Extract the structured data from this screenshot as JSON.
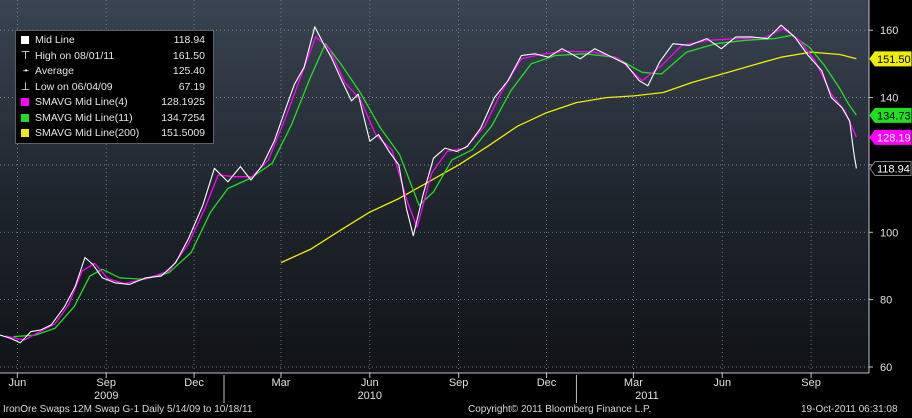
{
  "footer": {
    "left": "IronOre Swaps  12M Swap    G-1   Daily  5/14/09 to 10/18/11",
    "center": "Copyright© 2011 Bloomberg Finance L.P.",
    "right": "19-Oct-2011 06:31:08"
  },
  "legend": [
    {
      "marker": "square",
      "color": "#ffffff",
      "label": "Mid Line",
      "value": "118.94"
    },
    {
      "marker": "high-glyph",
      "color": "#ffffff",
      "label": "High on 08/01/11",
      "value": "161.50"
    },
    {
      "marker": "avg-glyph",
      "color": "#ffffff",
      "label": "Average",
      "value": "125.40"
    },
    {
      "marker": "low-glyph",
      "color": "#ffffff",
      "label": "Low on 06/04/09",
      "value": "67.19"
    },
    {
      "marker": "square",
      "color": "#ff00ff",
      "label": "SMAVG Mid Line(4)",
      "value": "128.1925"
    },
    {
      "marker": "square",
      "color": "#22dd22",
      "label": "SMAVG Mid Line(11)",
      "value": "134.7254"
    },
    {
      "marker": "square",
      "color": "#eeee00",
      "label": "SMAVG Mid Line(200)",
      "value": "151.5009"
    }
  ],
  "chart_data": {
    "type": "line",
    "y_ticks": [
      "60",
      "80",
      "100",
      "120",
      "140",
      "160"
    ],
    "ylim": [
      60,
      166
    ],
    "xlim": [
      "2009-05-14",
      "2011-10-31"
    ],
    "month_ticks": [
      {
        "date": "2009-06-01",
        "label": "Jun"
      },
      {
        "date": "2009-09-01",
        "label": "Sep"
      },
      {
        "date": "2009-12-01",
        "label": "Dec"
      },
      {
        "date": "2010-03-01",
        "label": "Mar"
      },
      {
        "date": "2010-06-01",
        "label": "Jun"
      },
      {
        "date": "2010-09-01",
        "label": "Sep"
      },
      {
        "date": "2010-12-01",
        "label": "Dec"
      },
      {
        "date": "2011-03-01",
        "label": "Mar"
      },
      {
        "date": "2011-06-01",
        "label": "Jun"
      },
      {
        "date": "2011-09-01",
        "label": "Sep"
      }
    ],
    "year_labels": [
      {
        "date": "2009-09-01",
        "label": "2009"
      },
      {
        "date": "2010-06-01",
        "label": "2010"
      },
      {
        "date": "2011-03-15",
        "label": "2011"
      }
    ],
    "year_dividers": [
      "2010-01-01",
      "2011-01-01"
    ],
    "series": [
      {
        "name": "Mid Line",
        "color": "#ffffff",
        "points": [
          [
            "2009-05-14",
            69.5
          ],
          [
            "2009-05-25",
            68.5
          ],
          [
            "2009-06-04",
            67.2
          ],
          [
            "2009-06-15",
            70.5
          ],
          [
            "2009-06-25",
            71.0
          ],
          [
            "2009-07-06",
            72.5
          ],
          [
            "2009-07-20",
            78.0
          ],
          [
            "2009-07-31",
            84.0
          ],
          [
            "2009-08-10",
            92.5
          ],
          [
            "2009-08-18",
            90.5
          ],
          [
            "2009-08-28",
            86.5
          ],
          [
            "2009-09-10",
            85.0
          ],
          [
            "2009-09-25",
            84.5
          ],
          [
            "2009-10-12",
            86.5
          ],
          [
            "2009-10-28",
            87.0
          ],
          [
            "2009-11-12",
            91.0
          ],
          [
            "2009-11-25",
            98.0
          ],
          [
            "2009-12-10",
            108.0
          ],
          [
            "2009-12-22",
            119.0
          ],
          [
            "2010-01-05",
            115.0
          ],
          [
            "2010-01-18",
            119.5
          ],
          [
            "2010-01-29",
            115.5
          ],
          [
            "2010-02-10",
            120.0
          ],
          [
            "2010-02-22",
            127.0
          ],
          [
            "2010-03-05",
            136.0
          ],
          [
            "2010-03-15",
            144.0
          ],
          [
            "2010-03-25",
            149.0
          ],
          [
            "2010-04-05",
            161.0
          ],
          [
            "2010-04-14",
            156.0
          ],
          [
            "2010-04-22",
            152.0
          ],
          [
            "2010-05-03",
            145.0
          ],
          [
            "2010-05-13",
            139.0
          ],
          [
            "2010-05-20",
            141.0
          ],
          [
            "2010-06-01",
            127.0
          ],
          [
            "2010-06-10",
            129.0
          ],
          [
            "2010-06-21",
            124.0
          ],
          [
            "2010-07-01",
            120.0
          ],
          [
            "2010-07-09",
            107.0
          ],
          [
            "2010-07-16",
            99.0
          ],
          [
            "2010-07-26",
            111.0
          ],
          [
            "2010-08-06",
            122.0
          ],
          [
            "2010-08-18",
            125.0
          ],
          [
            "2010-08-30",
            124.0
          ],
          [
            "2010-09-10",
            125.5
          ],
          [
            "2010-09-24",
            131.0
          ],
          [
            "2010-10-08",
            140.0
          ],
          [
            "2010-10-22",
            145.0
          ],
          [
            "2010-11-05",
            152.5
          ],
          [
            "2010-11-19",
            153.0
          ],
          [
            "2010-12-03",
            152.0
          ],
          [
            "2010-12-17",
            154.5
          ],
          [
            "2011-01-05",
            151.5
          ],
          [
            "2011-01-20",
            154.5
          ],
          [
            "2011-02-07",
            152.0
          ],
          [
            "2011-02-21",
            150.0
          ],
          [
            "2011-03-07",
            145.0
          ],
          [
            "2011-03-16",
            143.5
          ],
          [
            "2011-03-28",
            150.5
          ],
          [
            "2011-04-11",
            156.0
          ],
          [
            "2011-04-28",
            155.5
          ],
          [
            "2011-05-16",
            157.5
          ],
          [
            "2011-05-31",
            154.5
          ],
          [
            "2011-06-15",
            158.0
          ],
          [
            "2011-07-01",
            158.0
          ],
          [
            "2011-07-18",
            157.5
          ],
          [
            "2011-08-01",
            161.5
          ],
          [
            "2011-08-15",
            158.0
          ],
          [
            "2011-08-29",
            152.5
          ],
          [
            "2011-09-12",
            148.0
          ],
          [
            "2011-09-22",
            140.0
          ],
          [
            "2011-10-03",
            137.0
          ],
          [
            "2011-10-11",
            133.0
          ],
          [
            "2011-10-15",
            124.0
          ],
          [
            "2011-10-18",
            118.94
          ]
        ]
      },
      {
        "name": "SMAVG Mid Line(4)",
        "color": "#ff00ff",
        "points": [
          [
            "2009-05-20",
            69.2
          ],
          [
            "2009-06-08",
            68.0
          ],
          [
            "2009-06-25",
            70.6
          ],
          [
            "2009-07-10",
            72.8
          ],
          [
            "2009-07-24",
            78.5
          ],
          [
            "2009-08-07",
            88.5
          ],
          [
            "2009-08-20",
            90.8
          ],
          [
            "2009-09-03",
            86.2
          ],
          [
            "2009-09-20",
            84.8
          ],
          [
            "2009-10-12",
            86.2
          ],
          [
            "2009-11-05",
            88.5
          ],
          [
            "2009-11-25",
            96.5
          ],
          [
            "2009-12-12",
            107.0
          ],
          [
            "2009-12-26",
            117.0
          ],
          [
            "2010-01-12",
            116.5
          ],
          [
            "2010-01-30",
            116.5
          ],
          [
            "2010-02-16",
            121.5
          ],
          [
            "2010-03-05",
            133.5
          ],
          [
            "2010-03-20",
            145.0
          ],
          [
            "2010-04-06",
            158.0
          ],
          [
            "2010-04-20",
            154.5
          ],
          [
            "2010-05-06",
            144.5
          ],
          [
            "2010-05-22",
            139.5
          ],
          [
            "2010-06-07",
            129.0
          ],
          [
            "2010-06-24",
            124.5
          ],
          [
            "2010-07-10",
            109.0
          ],
          [
            "2010-07-20",
            101.5
          ],
          [
            "2010-08-04",
            117.5
          ],
          [
            "2010-08-20",
            124.0
          ],
          [
            "2010-09-08",
            125.0
          ],
          [
            "2010-09-28",
            131.5
          ],
          [
            "2010-10-15",
            141.5
          ],
          [
            "2010-11-05",
            151.5
          ],
          [
            "2010-11-25",
            152.8
          ],
          [
            "2010-12-20",
            153.8
          ],
          [
            "2011-01-20",
            153.5
          ],
          [
            "2011-02-14",
            151.5
          ],
          [
            "2011-03-10",
            145.0
          ],
          [
            "2011-03-30",
            149.5
          ],
          [
            "2011-04-20",
            155.5
          ],
          [
            "2011-05-18",
            157.0
          ],
          [
            "2011-06-15",
            157.5
          ],
          [
            "2011-07-15",
            157.8
          ],
          [
            "2011-08-03",
            160.5
          ],
          [
            "2011-08-20",
            157.0
          ],
          [
            "2011-09-05",
            151.0
          ],
          [
            "2011-09-22",
            141.0
          ],
          [
            "2011-10-06",
            136.0
          ],
          [
            "2011-10-18",
            128.19
          ]
        ]
      },
      {
        "name": "SMAVG Mid Line(11)",
        "color": "#22dd22",
        "points": [
          [
            "2009-05-28",
            69.0
          ],
          [
            "2009-06-20",
            69.5
          ],
          [
            "2009-07-10",
            71.5
          ],
          [
            "2009-07-30",
            78.0
          ],
          [
            "2009-08-15",
            87.0
          ],
          [
            "2009-08-28",
            89.0
          ],
          [
            "2009-09-15",
            86.5
          ],
          [
            "2009-10-10",
            86.0
          ],
          [
            "2009-11-05",
            88.0
          ],
          [
            "2009-11-28",
            94.0
          ],
          [
            "2009-12-18",
            106.0
          ],
          [
            "2010-01-05",
            113.0
          ],
          [
            "2010-01-28",
            116.0
          ],
          [
            "2010-02-20",
            120.5
          ],
          [
            "2010-03-12",
            132.0
          ],
          [
            "2010-03-30",
            145.0
          ],
          [
            "2010-04-16",
            156.0
          ],
          [
            "2010-05-02",
            150.0
          ],
          [
            "2010-05-22",
            141.5
          ],
          [
            "2010-06-12",
            131.0
          ],
          [
            "2010-07-02",
            123.0
          ],
          [
            "2010-07-22",
            108.0
          ],
          [
            "2010-08-06",
            112.0
          ],
          [
            "2010-08-25",
            121.5
          ],
          [
            "2010-09-15",
            124.5
          ],
          [
            "2010-10-05",
            131.5
          ],
          [
            "2010-10-25",
            142.0
          ],
          [
            "2010-11-15",
            150.0
          ],
          [
            "2010-12-10",
            152.5
          ],
          [
            "2011-01-10",
            153.0
          ],
          [
            "2011-02-10",
            152.0
          ],
          [
            "2011-03-10",
            147.5
          ],
          [
            "2011-03-30",
            147.0
          ],
          [
            "2011-04-25",
            153.5
          ],
          [
            "2011-05-25",
            156.0
          ],
          [
            "2011-06-25",
            157.0
          ],
          [
            "2011-07-25",
            157.5
          ],
          [
            "2011-08-12",
            158.5
          ],
          [
            "2011-08-30",
            155.0
          ],
          [
            "2011-09-15",
            149.5
          ],
          [
            "2011-09-30",
            143.0
          ],
          [
            "2011-10-10",
            138.0
          ],
          [
            "2011-10-18",
            134.73
          ]
        ]
      },
      {
        "name": "SMAVG Mid Line(200)",
        "color": "#eeee00",
        "points": [
          [
            "2010-03-01",
            91.0
          ],
          [
            "2010-04-01",
            95.0
          ],
          [
            "2010-05-01",
            100.5
          ],
          [
            "2010-06-01",
            106.0
          ],
          [
            "2010-07-01",
            110.0
          ],
          [
            "2010-08-01",
            115.0
          ],
          [
            "2010-09-01",
            120.0
          ],
          [
            "2010-10-01",
            125.5
          ],
          [
            "2010-11-01",
            131.5
          ],
          [
            "2010-12-01",
            135.5
          ],
          [
            "2011-01-01",
            138.5
          ],
          [
            "2011-02-01",
            140.0
          ],
          [
            "2011-03-01",
            140.5
          ],
          [
            "2011-04-01",
            141.5
          ],
          [
            "2011-05-01",
            144.5
          ],
          [
            "2011-06-01",
            147.0
          ],
          [
            "2011-07-01",
            149.5
          ],
          [
            "2011-08-01",
            152.0
          ],
          [
            "2011-09-01",
            153.5
          ],
          [
            "2011-10-01",
            152.8
          ],
          [
            "2011-10-18",
            151.5
          ]
        ]
      }
    ],
    "value_tags": [
      {
        "value": 151.5,
        "label": "151.50",
        "bg": "#eeee00",
        "fg": "#000000"
      },
      {
        "value": 134.73,
        "label": "134.73",
        "bg": "#22dd22",
        "fg": "#000000"
      },
      {
        "value": 128.19,
        "label": "128.19",
        "bg": "#ff00ff",
        "fg": "#ffffff"
      },
      {
        "value": 118.94,
        "label": "118.94",
        "bg": "#000000",
        "fg": "#ffffff"
      }
    ]
  }
}
